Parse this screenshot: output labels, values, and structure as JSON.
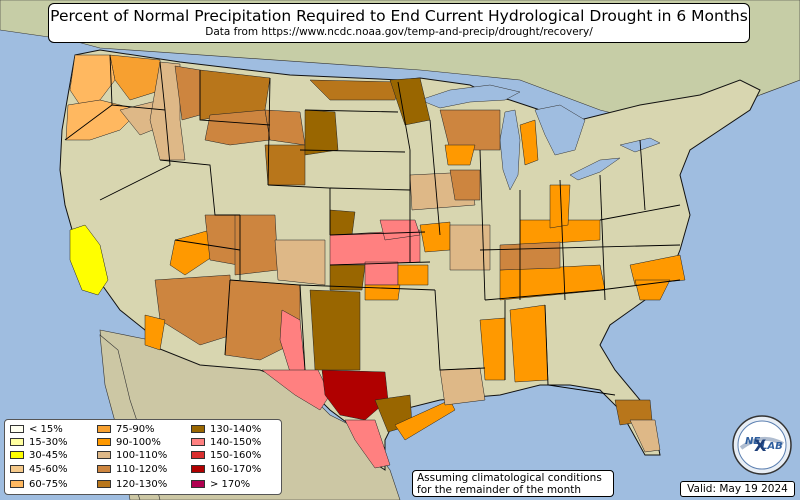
{
  "title": "Percent of Normal Precipitation Required to End Current Hydrological Drought in 6 Months",
  "subtitle": "Data from https://www.ncdc.noaa.gov/temp-and-precip/drought/recovery/",
  "note_line1": "Assuming climatological conditions",
  "note_line2": "for the remainder of the month",
  "valid": "Valid: May 19 2024",
  "logo_text_ne": "NE",
  "logo_text_lab": "LAB",
  "colors": {
    "ocean": "#9fbde0",
    "land": "#d7d7b4",
    "outside_land": "#c9ccb0",
    "lake": "#9fbde0",
    "state_border": "#000000"
  },
  "legend": [
    {
      "label": "< 15%",
      "color": "#fffff0"
    },
    {
      "label": "15-30%",
      "color": "#ffffa0"
    },
    {
      "label": "30-45%",
      "color": "#ffff00"
    },
    {
      "label": "45-60%",
      "color": "#f5c98a"
    },
    {
      "label": "60-75%",
      "color": "#ffb860"
    },
    {
      "label": "75-90%",
      "color": "#f7a030"
    },
    {
      "label": "90-100%",
      "color": "#ff9900"
    },
    {
      "label": "100-110%",
      "color": "#deb887"
    },
    {
      "label": "110-120%",
      "color": "#cd853f"
    },
    {
      "label": "120-130%",
      "color": "#b8761b"
    },
    {
      "label": "130-140%",
      "color": "#996600"
    },
    {
      "label": "140-150%",
      "color": "#ff8080"
    },
    {
      "label": "150-160%",
      "color": "#d93030"
    },
    {
      "label": "160-170%",
      "color": "#b00000"
    },
    {
      "label": "> 170%",
      "color": "#b00050"
    }
  ]
}
